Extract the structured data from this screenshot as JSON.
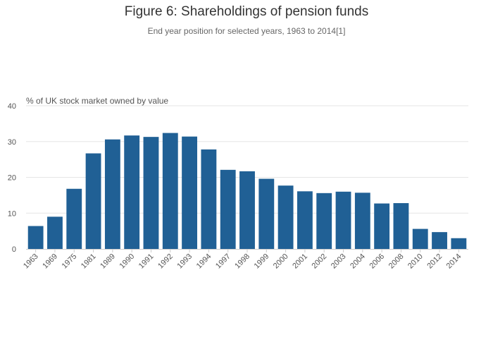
{
  "colors": {
    "bar": "#206095",
    "grid": "#e6e6e6",
    "axis": "#cccccc"
  },
  "chart_data": {
    "type": "bar",
    "title": "Figure 6: Shareholdings of pension funds",
    "subtitle": "End year position for selected years, 1963 to 2014[1]",
    "xlabel": "",
    "ylabel": "% of UK stock market owned by value",
    "ylim": [
      0,
      40
    ],
    "yticks": [
      0,
      10,
      20,
      30,
      40
    ],
    "grid": true,
    "categories": [
      "1963",
      "1969",
      "1975",
      "1981",
      "1989",
      "1990",
      "1991",
      "1992",
      "1993",
      "1994",
      "1997",
      "1998",
      "1999",
      "2000",
      "2001",
      "2002",
      "2003",
      "2004",
      "2006",
      "2008",
      "2010",
      "2012",
      "2014"
    ],
    "values": [
      6.4,
      9.0,
      16.8,
      26.7,
      30.6,
      31.7,
      31.3,
      32.4,
      31.4,
      27.8,
      22.1,
      21.7,
      19.6,
      17.7,
      16.1,
      15.6,
      16.0,
      15.7,
      12.7,
      12.8,
      5.6,
      4.7,
      3.0
    ]
  }
}
